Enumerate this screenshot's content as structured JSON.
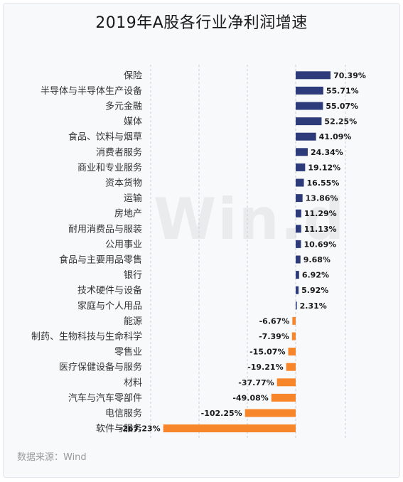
{
  "title": "2019年A股各行业净利润增速",
  "source": "数据来源：Wind",
  "watermark": "Win.d",
  "colors": {
    "positive": "#2e3b7a",
    "negative": "#f7862a"
  },
  "chart_data": {
    "type": "bar",
    "orientation": "horizontal",
    "title": "2019年A股各行业净利润增速",
    "xlabel": "",
    "ylabel": "",
    "unit": "%",
    "xlim": [
      -267.23,
      85
    ],
    "grid": true,
    "categories": [
      "保险",
      "半导体与半导体生产设备",
      "多元金融",
      "媒体",
      "食品、饮料与烟草",
      "消费者服务",
      "商业和专业服务",
      "资本货物",
      "运输",
      "房地产",
      "耐用消费品与服装",
      "公用事业",
      "食品与主要用品零售",
      "银行",
      "技术硬件与设备",
      "家庭与个人用品",
      "能源",
      "制药、生物科技与生命科学",
      "零售业",
      "医疗保健设备与服务",
      "材料",
      "汽车与汽车零部件",
      "电信服务",
      "软件与服务"
    ],
    "values": [
      70.39,
      55.71,
      55.07,
      52.25,
      41.09,
      24.34,
      19.12,
      16.55,
      13.86,
      11.29,
      11.13,
      10.69,
      9.68,
      6.92,
      5.92,
      2.31,
      -6.67,
      -7.39,
      -15.07,
      -19.21,
      -37.77,
      -49.08,
      -102.25,
      -267.23
    ],
    "labels": [
      "70.39%",
      "55.71%",
      "55.07%",
      "52.25%",
      "41.09%",
      "24.34%",
      "19.12%",
      "16.55%",
      "13.86%",
      "11.29%",
      "11.13%",
      "10.69%",
      "9.68%",
      "6.92%",
      "5.92%",
      "2.31%",
      "-6.67%",
      "-7.39%",
      "-15.07%",
      "-19.21%",
      "-37.77%",
      "-49.08%",
      "-102.25%",
      "-267.23%"
    ]
  }
}
